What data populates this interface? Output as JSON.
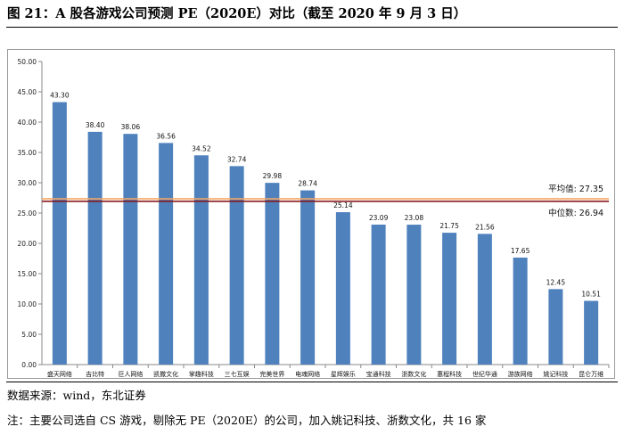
{
  "title": "图 21：A 股各游戏公司预测 PE（2020E）对比（截至 2020 年 9 月 3 日）",
  "chart_data": {
    "type": "bar",
    "categories": [
      "盛天网络",
      "吉比特",
      "巨人网络",
      "凯撒文化",
      "掌趣科技",
      "三七互娱",
      "完美世界",
      "电魂网络",
      "星辉娱乐",
      "宝通科技",
      "浙数文化",
      "惠程科技",
      "世纪华通",
      "游族网络",
      "姚记科技",
      "昆仑万维"
    ],
    "values": [
      43.3,
      38.4,
      38.06,
      36.56,
      34.52,
      32.74,
      29.98,
      28.74,
      25.14,
      23.09,
      23.08,
      21.75,
      21.56,
      17.65,
      12.45,
      10.51
    ],
    "value_labels": [
      "43.30",
      "38.40",
      "38.06",
      "36.56",
      "34.52",
      "32.74",
      "29.98",
      "28.74",
      "25.14",
      "23.09",
      "23.08",
      "21.75",
      "21.56",
      "17.65",
      "12.45",
      "10.51"
    ],
    "ylim": [
      0,
      50
    ],
    "yticks": [
      "0.00",
      "5.00",
      "10.00",
      "15.00",
      "20.00",
      "25.00",
      "30.00",
      "35.00",
      "40.00",
      "45.00",
      "50.00"
    ],
    "bar_color": "#4f81bd",
    "reference_lines": [
      {
        "name": "平均值",
        "value": 27.35,
        "label": "平均值:  27.35",
        "color": "#f4a460"
      },
      {
        "name": "中位数",
        "value": 26.94,
        "label": "中位数:  26.94",
        "color": "#8b1a1a"
      }
    ],
    "xlabel": "",
    "ylabel": ""
  },
  "source": "数据来源：wind，东北证券",
  "note": "注：主要公司选自 CS 游戏，剔除无 PE（2020E）的公司，加入姚记科技、浙数文化，共 16 家"
}
